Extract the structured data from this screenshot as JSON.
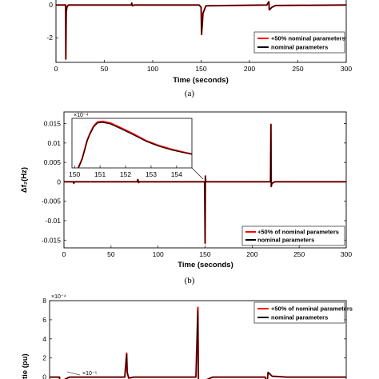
{
  "chart_data": [
    {
      "type": "line",
      "panel_caption": "(a)",
      "xlabel": "Time (seconds)",
      "ylabel": "",
      "xlim": [
        0,
        300
      ],
      "ylim": [
        -3.5,
        0.4
      ],
      "x_ticks": [
        "0",
        "50",
        "100",
        "150",
        "200",
        "250",
        "300"
      ],
      "y_ticks": [
        "0",
        "-2"
      ],
      "series": [
        {
          "name": "+50% nominal parameters",
          "color": "#ff0000",
          "x": [
            0,
            10,
            10.2,
            10.6,
            11.5,
            13,
            78,
            78.3,
            79,
            81,
            148,
            150,
            150.5,
            152,
            155,
            218,
            220,
            220.5,
            223,
            227,
            300
          ],
          "y": [
            0,
            0,
            -3.3,
            -0.4,
            -0.1,
            0,
            0,
            0.12,
            -0.05,
            0,
            0,
            -0.15,
            -1.8,
            -0.5,
            -0.05,
            0,
            0.2,
            -0.3,
            -0.15,
            -0.03,
            0
          ]
        },
        {
          "name": "nominal parameters",
          "color": "#000000",
          "x": [
            0,
            10,
            10.2,
            10.6,
            11.5,
            13,
            78,
            78.3,
            79,
            81,
            148,
            150,
            150.5,
            152,
            155,
            218,
            220,
            220.5,
            223,
            227,
            300
          ],
          "y": [
            0,
            0,
            -3.3,
            -0.4,
            -0.1,
            0,
            0,
            0.12,
            -0.05,
            0,
            0,
            -0.15,
            -1.8,
            -0.5,
            -0.05,
            0,
            0.2,
            -0.3,
            -0.15,
            -0.03,
            0
          ]
        }
      ]
    },
    {
      "type": "line",
      "panel_caption": "(b)",
      "xlabel": "Time (seconds)",
      "ylabel": "Δf₂(Hz)",
      "xlim": [
        0,
        300
      ],
      "ylim": [
        -0.017,
        0.018
      ],
      "x_ticks": [
        "0",
        "50",
        "100",
        "150",
        "200",
        "250",
        "300"
      ],
      "y_ticks": [
        "0.015",
        "0.01",
        "0.005",
        "0",
        "-0.005",
        "-0.01",
        "-0.015"
      ],
      "series": [
        {
          "name": "+50% of nominal parameters",
          "color": "#ff0000",
          "x": [
            0,
            10,
            10.5,
            11,
            78,
            78.5,
            79.5,
            80,
            149.5,
            150,
            150.3,
            150.6,
            151,
            153,
            219.5,
            220,
            220.3,
            221,
            224,
            300
          ],
          "y": [
            0,
            0,
            -0.0004,
            0,
            0,
            0.0006,
            -0.0002,
            0,
            0,
            -0.0158,
            0.0015,
            0.0002,
            0,
            0,
            0,
            0.0148,
            -0.0012,
            -0.0004,
            0,
            0
          ]
        },
        {
          "name": "nominal parameters",
          "color": "#000000",
          "x": [
            0,
            10,
            10.5,
            11,
            78,
            78.5,
            79.5,
            80,
            149.5,
            150,
            150.3,
            150.6,
            151,
            153,
            219.5,
            220,
            220.3,
            221,
            224,
            300
          ],
          "y": [
            0,
            0,
            -0.0004,
            0,
            0,
            0.0006,
            -0.0002,
            0,
            0,
            -0.0158,
            0.0015,
            0.0002,
            0,
            0,
            0,
            0.0148,
            -0.0012,
            -0.0004,
            0,
            0
          ]
        }
      ],
      "inset": {
        "xlim": [
          149.9,
          154.6
        ],
        "ylim": [
          0,
          0.0016
        ],
        "multiplier": "×10⁻⁴",
        "x_ticks": [
          "150",
          "151",
          "152",
          "153",
          "154"
        ],
        "series": [
          {
            "name": "+50% of nominal parameters",
            "color": "#ff0000",
            "x": [
              150.15,
              150.3,
              150.4,
              150.5,
              150.6,
              150.75,
              150.9,
              151.1,
              151.4,
              151.8,
              152.3,
              152.8,
              153.3,
              153.8,
              154.3,
              154.6
            ],
            "y": [
              0,
              0.0003,
              0.0006,
              0.0009,
              0.0011,
              0.00135,
              0.00148,
              0.0015,
              0.00145,
              0.0013,
              0.0011,
              0.00088,
              0.00072,
              0.0006,
              0.0005,
              0.00045
            ]
          },
          {
            "name": "nominal parameters",
            "color": "#000000",
            "x": [
              150.15,
              150.3,
              150.4,
              150.5,
              150.6,
              150.75,
              150.9,
              151.1,
              151.4,
              151.8,
              152.3,
              152.8,
              153.3,
              153.8,
              154.3,
              154.6
            ],
            "y": [
              0,
              0.00028,
              0.00058,
              0.00088,
              0.00108,
              0.00132,
              0.00145,
              0.00147,
              0.00142,
              0.00127,
              0.00107,
              0.00086,
              0.0007,
              0.00058,
              0.00049,
              0.00044
            ]
          }
        ]
      }
    },
    {
      "type": "line",
      "panel_caption": "",
      "xlabel": "",
      "ylabel": "tie (pu)",
      "multiplier": "×10⁻⁴",
      "xlim": [
        0,
        300
      ],
      "ylim": [
        -0.00012,
        0.0008
      ],
      "y_ticks": [
        "8",
        "6",
        "4",
        "2",
        "0"
      ],
      "annotation": "×10⁻⁵",
      "series": [
        {
          "name": "+50% of nominal parameters",
          "color": "#ff0000",
          "x": [
            0,
            10,
            11,
            13,
            16,
            20,
            25,
            76,
            78,
            78.5,
            80,
            85,
            148,
            150,
            150.5,
            152,
            158,
            165,
            218,
            220,
            221,
            225,
            240,
            300
          ],
          "y": [
            0,
            0,
            -8e-05,
            -4e-05,
            -2e-05,
            0,
            0,
            0,
            0.00025,
            5e-05,
            -1e-05,
            0,
            0,
            0.00073,
            -3e-05,
            -6e-05,
            -3e-05,
            0,
            0,
            -6e-05,
            5e-05,
            1e-05,
            0,
            0
          ]
        },
        {
          "name": "nominal parameters",
          "color": "#000000",
          "x": [
            0,
            10,
            11,
            13,
            16,
            20,
            25,
            76,
            78,
            78.5,
            80,
            85,
            148,
            150,
            150.5,
            152,
            158,
            165,
            218,
            220,
            221,
            225,
            240,
            300
          ],
          "y": [
            0,
            0,
            -8e-05,
            -4e-05,
            -2e-05,
            0,
            0,
            0,
            0.00024,
            5e-05,
            -1e-05,
            0,
            0,
            0.0007,
            -3e-05,
            -6e-05,
            -3e-05,
            0,
            0,
            -6e-05,
            5e-05,
            1e-05,
            0,
            0
          ]
        }
      ]
    }
  ]
}
